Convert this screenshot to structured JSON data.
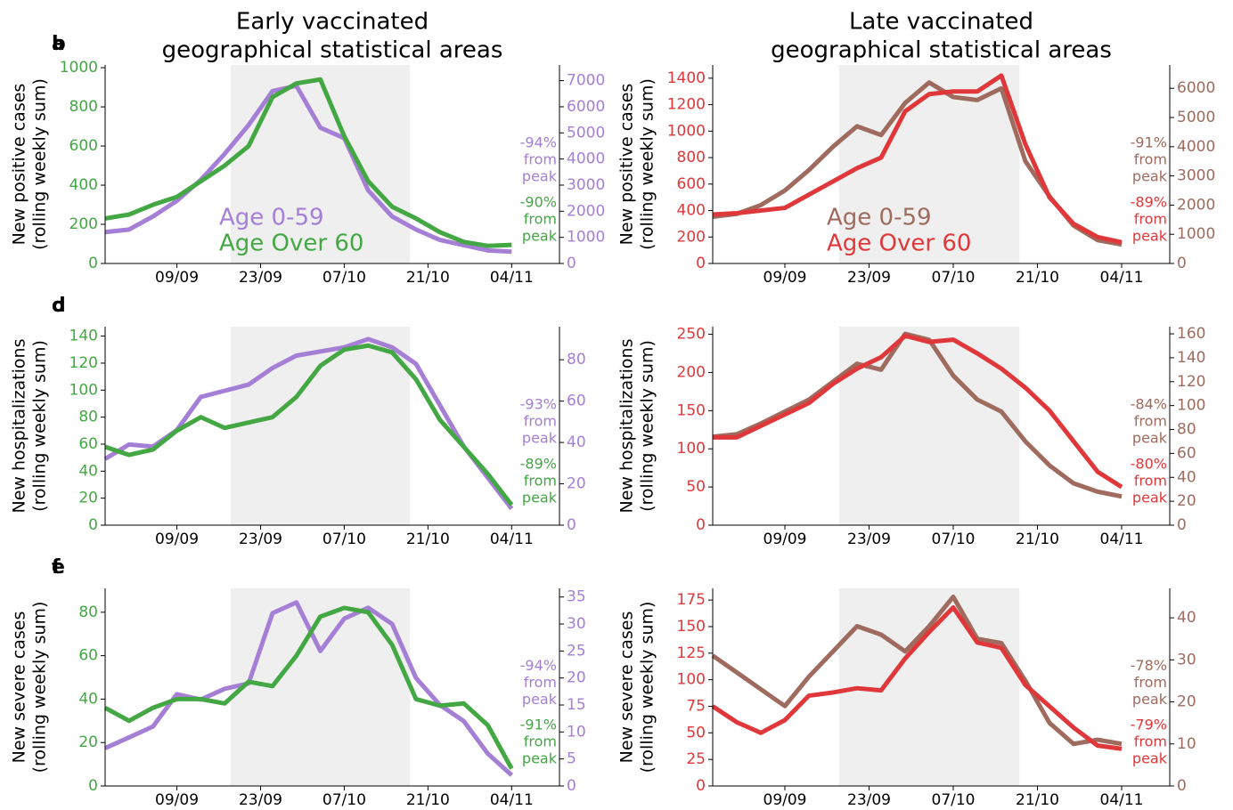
{
  "chart_data": [
    {
      "type": "line",
      "label": "a",
      "title": [
        "Early vaccinated",
        "geographical statistical areas"
      ],
      "ylabel": [
        "New positive cases",
        "(rolling weekly sum)"
      ],
      "legend": true,
      "x": [
        0,
        4,
        8,
        12,
        16,
        20,
        24,
        28,
        32,
        36,
        40,
        44,
        48,
        52,
        56,
        60,
        64,
        68
      ],
      "xlim": [
        0,
        76
      ],
      "xticks": [
        {
          "value": 12,
          "label": "09/09"
        },
        {
          "value": 26,
          "label": "23/09"
        },
        {
          "value": 40,
          "label": "07/10"
        },
        {
          "value": 54,
          "label": "21/10"
        },
        {
          "value": 68,
          "label": "04/11"
        }
      ],
      "shade": [
        21,
        51
      ],
      "ylim": [
        0,
        1014
      ],
      "yticks": [
        0,
        200,
        400,
        600,
        800,
        1000
      ],
      "y2lim": [
        0,
        7600
      ],
      "y2ticks": [
        0,
        1000,
        2000,
        3000,
        4000,
        5000,
        6000,
        7000
      ],
      "series": [
        {
          "name": "Age 0-59",
          "color": "#a57fd6",
          "axis": "y2",
          "values": [
            1200,
            1300,
            1800,
            2400,
            3200,
            4200,
            5300,
            6600,
            6800,
            5200,
            4800,
            2800,
            1800,
            1300,
            900,
            700,
            500,
            450
          ],
          "annotation": [
            "-94%",
            "from",
            "peak"
          ]
        },
        {
          "name": "Age Over 60",
          "color": "#43a843",
          "values": [
            230,
            250,
            300,
            340,
            420,
            500,
            600,
            850,
            920,
            940,
            650,
            420,
            290,
            230,
            160,
            110,
            90,
            95
          ],
          "annotation": [
            "-90%",
            "from",
            "peak"
          ]
        }
      ]
    },
    {
      "type": "line",
      "label": "b",
      "title": [
        "Late vaccinated",
        "geographical statistical areas"
      ],
      "ylabel": [
        "New positive cases",
        "(rolling weekly sum)"
      ],
      "legend": true,
      "x": [
        0,
        4,
        8,
        12,
        16,
        20,
        24,
        28,
        32,
        36,
        40,
        44,
        48,
        52,
        56,
        60,
        64,
        68
      ],
      "xlim": [
        0,
        76
      ],
      "xticks": [
        {
          "value": 12,
          "label": "09/09"
        },
        {
          "value": 26,
          "label": "23/09"
        },
        {
          "value": 40,
          "label": "07/10"
        },
        {
          "value": 54,
          "label": "21/10"
        },
        {
          "value": 68,
          "label": "04/11"
        }
      ],
      "shade": [
        21,
        51
      ],
      "ylim": [
        0,
        1500
      ],
      "yticks": [
        0,
        200,
        400,
        600,
        800,
        1000,
        1200,
        1400
      ],
      "y2lim": [
        0,
        6800
      ],
      "y2ticks": [
        0,
        1000,
        2000,
        3000,
        4000,
        5000,
        6000
      ],
      "series": [
        {
          "name": "Age 0-59",
          "color": "#9e6b5e",
          "axis": "y2",
          "values": [
            1600,
            1700,
            2000,
            2500,
            3200,
            4000,
            4700,
            4400,
            5500,
            6200,
            5700,
            5600,
            6000,
            3500,
            2300,
            1300,
            800,
            650
          ],
          "annotation": [
            "-91%",
            "from",
            "peak"
          ]
        },
        {
          "name": "Age Over 60",
          "color": "#e0383a",
          "values": [
            370,
            380,
            400,
            420,
            520,
            620,
            720,
            800,
            1150,
            1280,
            1300,
            1300,
            1420,
            900,
            500,
            300,
            200,
            160
          ],
          "annotation": [
            "-89%",
            "from",
            "peak"
          ]
        }
      ]
    },
    {
      "type": "line",
      "label": "c",
      "ylabel": [
        "New hospitalizations",
        "(rolling weekly sum)"
      ],
      "legend": false,
      "x": [
        0,
        4,
        8,
        12,
        16,
        20,
        24,
        28,
        32,
        36,
        40,
        44,
        48,
        52,
        56,
        60,
        64,
        68
      ],
      "xlim": [
        0,
        76
      ],
      "xticks": [
        {
          "value": 12,
          "label": "09/09"
        },
        {
          "value": 26,
          "label": "23/09"
        },
        {
          "value": 40,
          "label": "07/10"
        },
        {
          "value": 54,
          "label": "21/10"
        },
        {
          "value": 68,
          "label": "04/11"
        }
      ],
      "shade": [
        21,
        51
      ],
      "ylim": [
        0,
        147
      ],
      "yticks": [
        0,
        20,
        40,
        60,
        80,
        100,
        120,
        140
      ],
      "y2lim": [
        0,
        96
      ],
      "y2ticks": [
        0,
        20,
        40,
        60,
        80
      ],
      "series": [
        {
          "color": "#a57fd6",
          "axis": "y2",
          "values": [
            32,
            39,
            38,
            46,
            62,
            65,
            68,
            76,
            82,
            84,
            86,
            90,
            86,
            78,
            58,
            38,
            23,
            8
          ],
          "annotation": [
            "-93%",
            "from",
            "peak"
          ]
        },
        {
          "color": "#43a843",
          "values": [
            58,
            52,
            56,
            70,
            80,
            72,
            76,
            80,
            95,
            118,
            130,
            133,
            128,
            108,
            78,
            58,
            38,
            15
          ],
          "annotation": [
            "-89%",
            "from",
            "peak"
          ]
        }
      ]
    },
    {
      "type": "line",
      "label": "d",
      "ylabel": [
        "New hospitalizations",
        "(rolling weekly sum)"
      ],
      "legend": false,
      "x": [
        0,
        4,
        8,
        12,
        16,
        20,
        24,
        28,
        32,
        36,
        40,
        44,
        48,
        52,
        56,
        60,
        64,
        68
      ],
      "xlim": [
        0,
        76
      ],
      "xticks": [
        {
          "value": 12,
          "label": "09/09"
        },
        {
          "value": 26,
          "label": "23/09"
        },
        {
          "value": 40,
          "label": "07/10"
        },
        {
          "value": 54,
          "label": "21/10"
        },
        {
          "value": 68,
          "label": "04/11"
        }
      ],
      "shade": [
        21,
        51
      ],
      "ylim": [
        0,
        260
      ],
      "yticks": [
        0,
        50,
        100,
        150,
        200,
        250
      ],
      "y2lim": [
        0,
        166
      ],
      "y2ticks": [
        0,
        20,
        40,
        60,
        80,
        100,
        120,
        140,
        160
      ],
      "series": [
        {
          "color": "#9e6b5e",
          "axis": "y2",
          "values": [
            74,
            76,
            85,
            95,
            105,
            120,
            135,
            130,
            160,
            155,
            125,
            105,
            95,
            70,
            50,
            35,
            28,
            24
          ],
          "annotation": [
            "-84%",
            "from",
            "peak"
          ]
        },
        {
          "color": "#e0383a",
          "values": [
            115,
            115,
            130,
            145,
            160,
            185,
            205,
            220,
            248,
            240,
            243,
            225,
            205,
            180,
            150,
            110,
            70,
            50
          ],
          "annotation": [
            "-80%",
            "from",
            "peak"
          ]
        }
      ]
    },
    {
      "type": "line",
      "label": "e",
      "ylabel": [
        "New severe cases",
        "(rolling weekly sum)"
      ],
      "legend": false,
      "x": [
        0,
        4,
        8,
        12,
        16,
        20,
        24,
        28,
        32,
        36,
        40,
        44,
        48,
        52,
        56,
        60,
        64,
        68
      ],
      "xlim": [
        0,
        76
      ],
      "xticks": [
        {
          "value": 12,
          "label": "09/09"
        },
        {
          "value": 26,
          "label": "23/09"
        },
        {
          "value": 40,
          "label": "07/10"
        },
        {
          "value": 54,
          "label": "21/10"
        },
        {
          "value": 68,
          "label": "04/11"
        }
      ],
      "shade": [
        21,
        51
      ],
      "ylim": [
        0,
        91
      ],
      "yticks": [
        0,
        20,
        40,
        60,
        80
      ],
      "y2lim": [
        0,
        36.6
      ],
      "y2ticks": [
        0,
        5,
        10,
        15,
        20,
        25,
        30,
        35
      ],
      "series": [
        {
          "color": "#a57fd6",
          "axis": "y2",
          "values": [
            7,
            9,
            11,
            17,
            16,
            18,
            19,
            32,
            34,
            25,
            31,
            33,
            30,
            20,
            15,
            12,
            6,
            2
          ],
          "annotation": [
            "-94%",
            "from",
            "peak"
          ]
        },
        {
          "color": "#43a843",
          "values": [
            36,
            30,
            36,
            40,
            40,
            38,
            48,
            46,
            60,
            78,
            82,
            80,
            65,
            40,
            37,
            38,
            28,
            8
          ],
          "annotation": [
            "-91%",
            "from",
            "peak"
          ]
        }
      ]
    },
    {
      "type": "line",
      "label": "f",
      "ylabel": [
        "New severe cases",
        "(rolling weekly sum)"
      ],
      "legend": false,
      "x": [
        0,
        4,
        8,
        12,
        16,
        20,
        24,
        28,
        32,
        36,
        40,
        44,
        48,
        52,
        56,
        60,
        64,
        68
      ],
      "xlim": [
        0,
        76
      ],
      "xticks": [
        {
          "value": 12,
          "label": "09/09"
        },
        {
          "value": 26,
          "label": "23/09"
        },
        {
          "value": 40,
          "label": "07/10"
        },
        {
          "value": 54,
          "label": "21/10"
        },
        {
          "value": 68,
          "label": "04/11"
        }
      ],
      "shade": [
        21,
        51
      ],
      "ylim": [
        0,
        186
      ],
      "yticks": [
        0,
        25,
        50,
        75,
        100,
        125,
        150,
        175
      ],
      "y2lim": [
        0,
        47
      ],
      "y2ticks": [
        0,
        10,
        20,
        30,
        40
      ],
      "series": [
        {
          "color": "#9e6b5e",
          "axis": "y2",
          "values": [
            31,
            27,
            23,
            19,
            26,
            32,
            38,
            36,
            32,
            38,
            45,
            35,
            34,
            25,
            15,
            10,
            11,
            10
          ],
          "annotation": [
            "-78%",
            "from",
            "peak"
          ]
        },
        {
          "color": "#e0383a",
          "values": [
            75,
            60,
            50,
            62,
            85,
            88,
            92,
            90,
            120,
            145,
            168,
            135,
            130,
            95,
            75,
            55,
            38,
            35
          ],
          "annotation": [
            "-79%",
            "from",
            "peak"
          ]
        }
      ]
    }
  ]
}
